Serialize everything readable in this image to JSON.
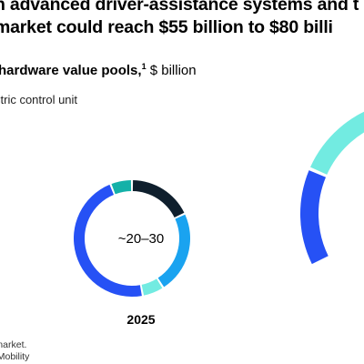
{
  "header": {
    "title_line1": "n advanced driver-assistance systems and t",
    "title_line2": "market could reach $55 billion to $80 billi",
    "subtitle_bold": "hardware value pools,",
    "subtitle_sup": "1",
    "subtitle_unit": " $ billion",
    "legend_label": "ctric control unit"
  },
  "footer": {
    "line1": "r market.",
    "line2": "e Mobility"
  },
  "colors": {
    "navy": "#0f1f2d",
    "light_blue": "#1aa3f0",
    "mint": "#72ebe1",
    "royal_blue": "#2651f5",
    "teal": "#14b1a8"
  },
  "chart_data": [
    {
      "type": "pie",
      "style": "donut",
      "category_label": "2025",
      "center_label": "~20–30",
      "segments": [
        {
          "share": 0.18,
          "color": "#0f1f2d"
        },
        {
          "share": 0.23,
          "color": "#1aa3f0"
        },
        {
          "share": 0.06,
          "color": "#72ebe1"
        },
        {
          "share": 0.47,
          "color": "#2651f5"
        },
        {
          "share": 0.06,
          "color": "#14b1a8"
        }
      ]
    },
    {
      "type": "pie",
      "style": "donut",
      "partial_view": true,
      "segments": [
        {
          "share": 0.14,
          "color": "#2651f5"
        },
        {
          "share": 0.14,
          "color": "#72ebe1"
        }
      ]
    }
  ]
}
